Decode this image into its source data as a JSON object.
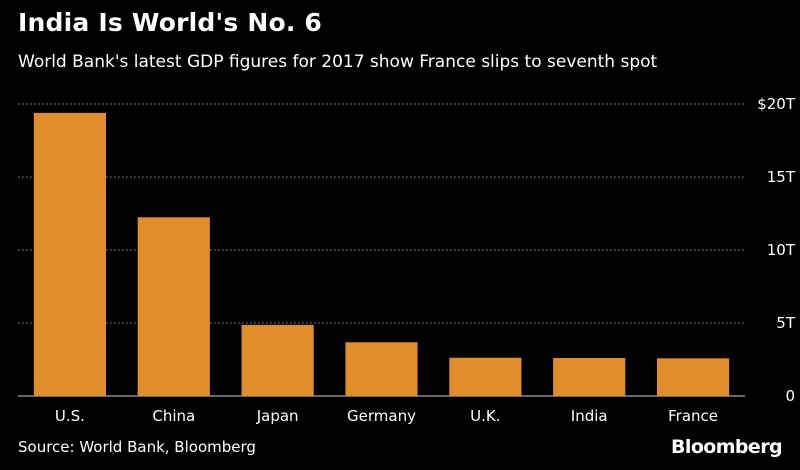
{
  "title": "India Is World's No. 6",
  "subtitle": "World Bank's latest GDP figures for 2017 show France slips to seventh spot",
  "source": "Source: World Bank, Bloomberg",
  "brand": "Bloomberg",
  "colors": {
    "background": "#000000",
    "bar": "#e08e2b",
    "text": "#ffffff",
    "grid": "#9a9a9a"
  },
  "chart_data": {
    "type": "bar",
    "title": "India Is World's No. 6",
    "subtitle": "World Bank's latest GDP figures for 2017 show France slips to seventh spot",
    "xlabel": "",
    "ylabel": "",
    "categories": [
      "U.S.",
      "China",
      "Japan",
      "Germany",
      "U.K.",
      "India",
      "France"
    ],
    "values": [
      19.39,
      12.24,
      4.87,
      3.68,
      2.62,
      2.6,
      2.58
    ],
    "unit": "trillion USD",
    "ylim": [
      0,
      20
    ],
    "yticks": [
      {
        "value": 0,
        "label": "0"
      },
      {
        "value": 5,
        "label": "5T"
      },
      {
        "value": 10,
        "label": "10T"
      },
      {
        "value": 15,
        "label": "15T"
      },
      {
        "value": 20,
        "label": "$20T"
      }
    ],
    "grid": true,
    "y_axis_side": "right",
    "legend": "none"
  }
}
